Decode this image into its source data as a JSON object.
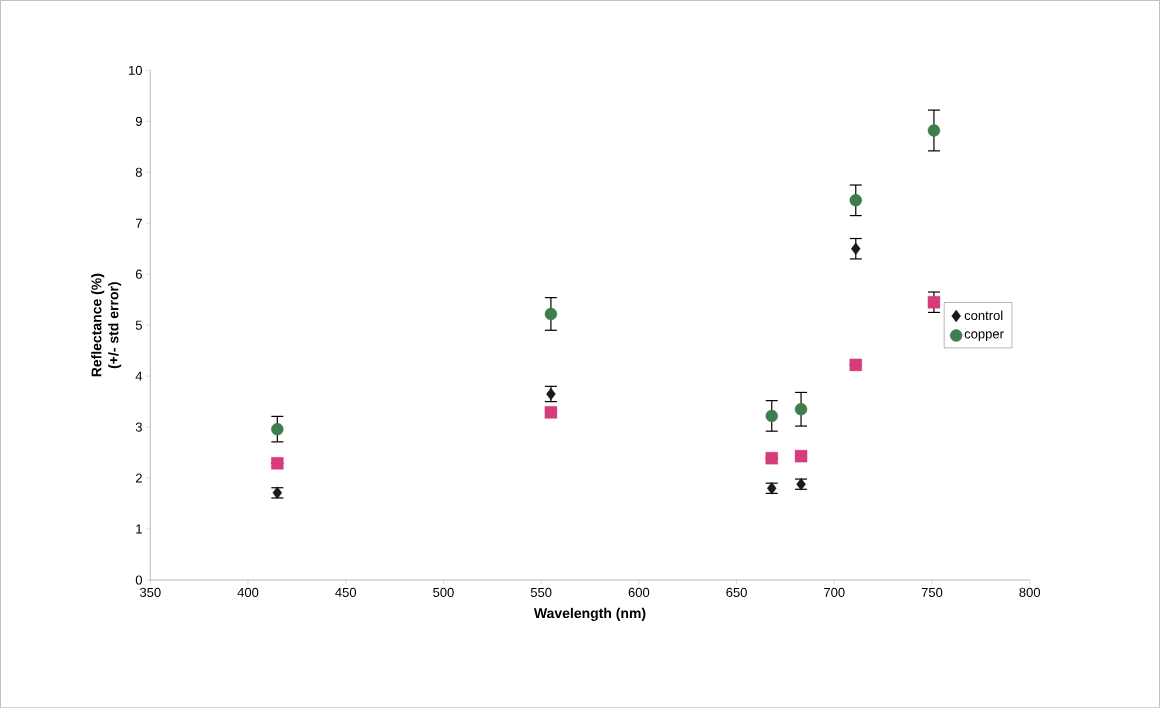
{
  "chart_data": {
    "type": "scatter",
    "xlabel": "Wavelength (nm)",
    "ylabel": "Reflectance (%)\n(+/- std error)",
    "xlim": [
      350,
      800
    ],
    "xticks": [
      350,
      400,
      450,
      500,
      550,
      600,
      650,
      700,
      750,
      800
    ],
    "ylim": [
      0,
      10
    ],
    "yticks": [
      0,
      1,
      2,
      3,
      4,
      5,
      6,
      7,
      8,
      9,
      10
    ],
    "x": [
      415,
      555,
      668,
      683,
      711,
      751
    ],
    "legend": "right",
    "series": [
      {
        "name": "control",
        "color": "#1a1a1a",
        "marker": "diamond",
        "values": [
          1.71,
          3.65,
          1.8,
          1.88,
          6.5,
          null
        ],
        "errors": [
          0.1,
          0.15,
          0.1,
          0.1,
          0.2,
          null
        ]
      },
      {
        "color": "#d63c7a",
        "marker": "square",
        "values": [
          2.29,
          3.29,
          2.39,
          2.43,
          4.22,
          5.45
        ],
        "errors": [
          null,
          null,
          null,
          null,
          null,
          0.2
        ]
      },
      {
        "name": "copper",
        "color": "#3f7d4e",
        "marker": "circle",
        "values": [
          2.96,
          5.22,
          3.22,
          3.35,
          7.45,
          8.82
        ],
        "errors": [
          0.25,
          0.32,
          0.3,
          0.33,
          0.3,
          0.4
        ]
      }
    ]
  }
}
